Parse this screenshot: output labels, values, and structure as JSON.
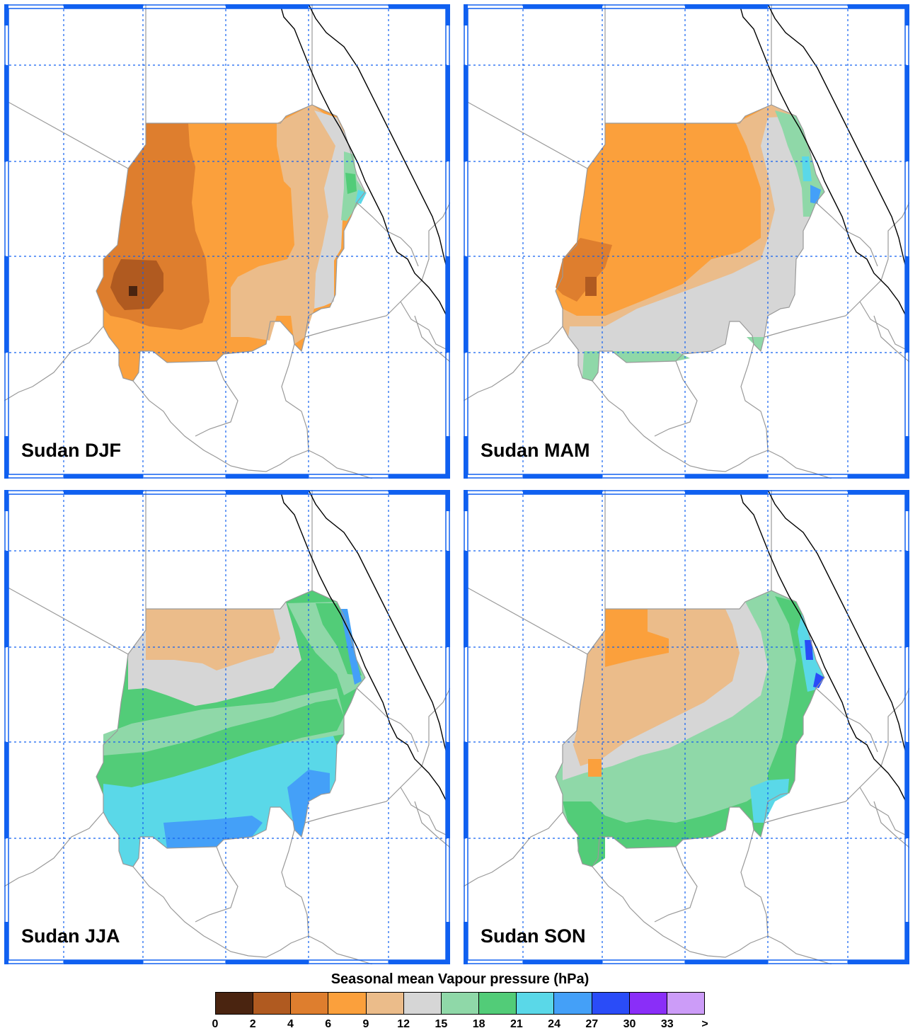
{
  "panels": [
    {
      "label": "Sudan DJF",
      "season": "DJF"
    },
    {
      "label": "Sudan MAM",
      "season": "MAM"
    },
    {
      "label": "Sudan JJA",
      "season": "JJA"
    },
    {
      "label": "Sudan SON",
      "season": "SON"
    }
  ],
  "legend": {
    "title": "Seasonal mean Vapour pressure (hPa)",
    "colors": [
      "#4a2410",
      "#b05a20",
      "#de7e2e",
      "#fba03c",
      "#ebbc8a",
      "#d6d6d6",
      "#8fd8a8",
      "#52cc78",
      "#5ad8e8",
      "#44a0f8",
      "#2a4cf8",
      "#8a2ef8",
      "#cc9cf8"
    ],
    "ticks": [
      "0",
      "2",
      "4",
      "6",
      "9",
      "12",
      "15",
      "18",
      "21",
      "24",
      "27",
      "30",
      "33",
      ">"
    ]
  },
  "map": {
    "grid_color": "#1060f0",
    "border_color": "#999999",
    "coast_color": "#000000"
  }
}
